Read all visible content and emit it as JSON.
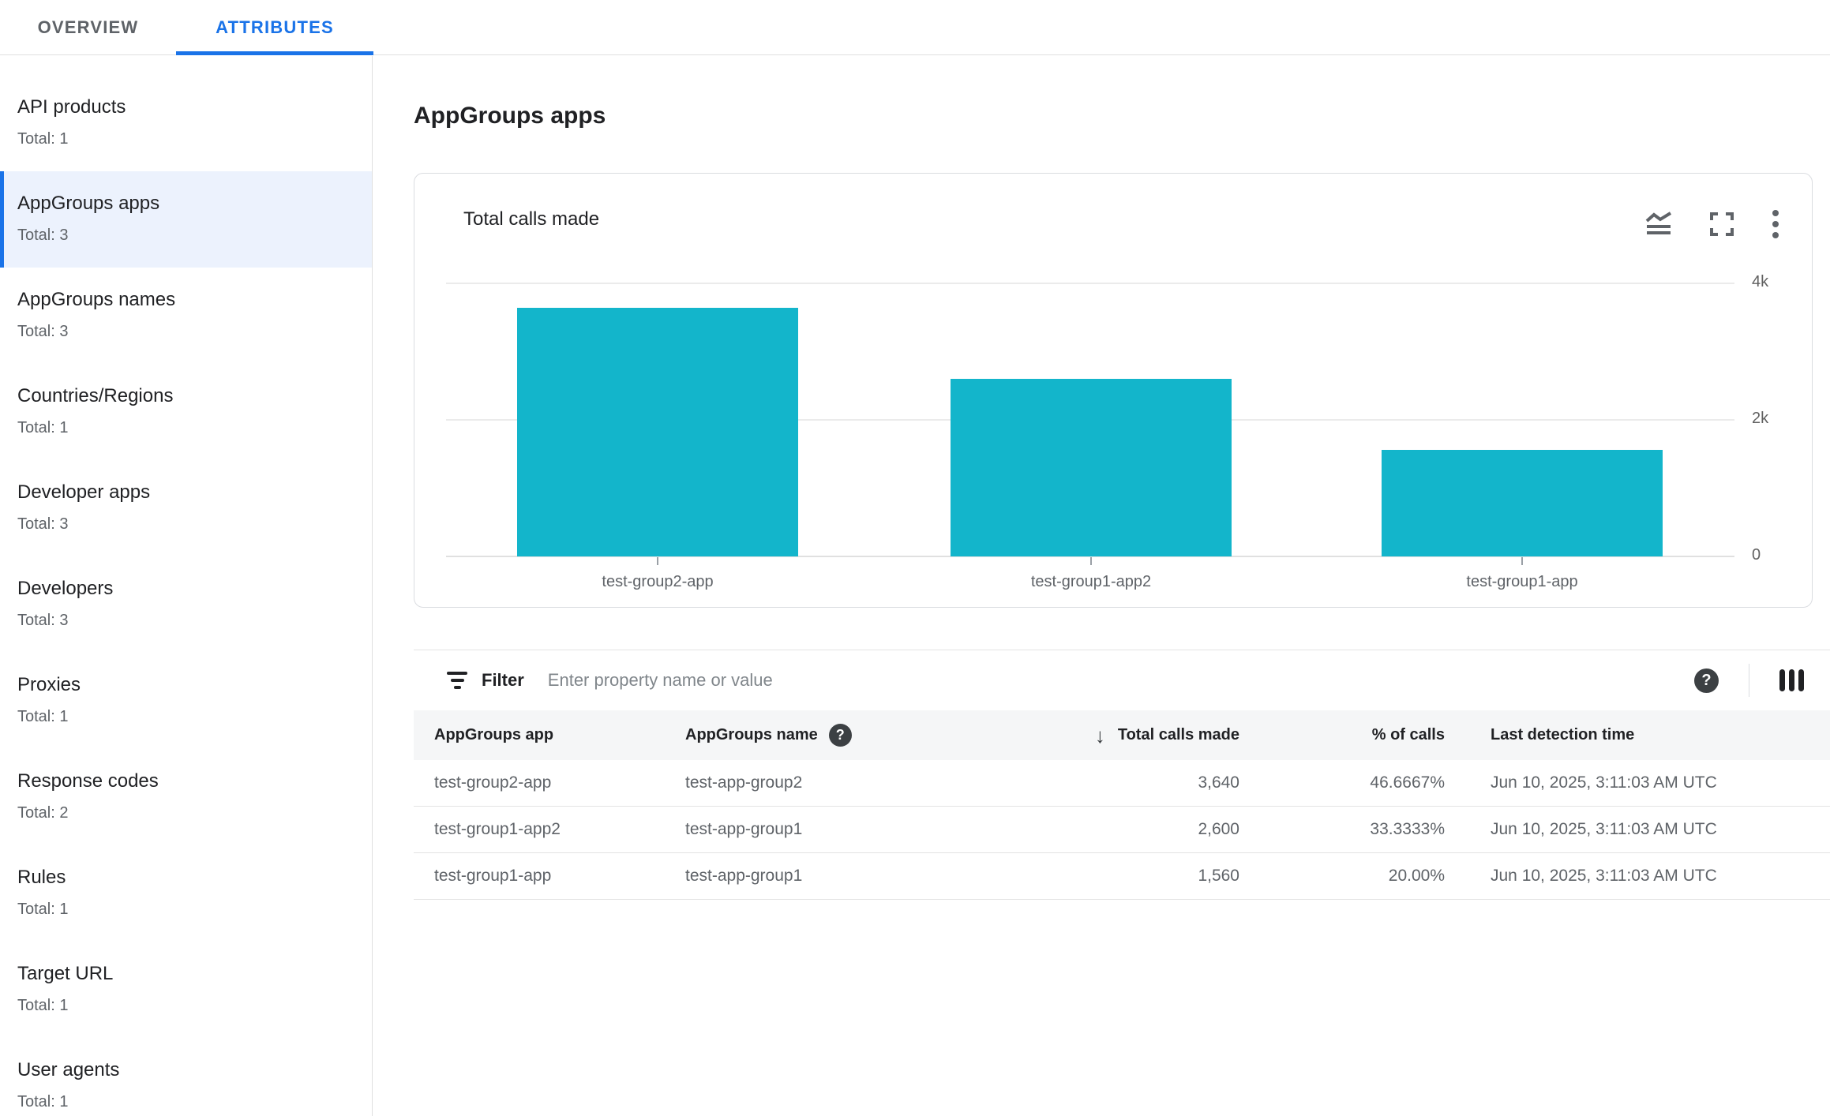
{
  "tabs": {
    "overview": "OVERVIEW",
    "attributes": "ATTRIBUTES"
  },
  "sidebar": {
    "items": [
      {
        "label": "API products",
        "subtitle": "Total: 1",
        "selected": false
      },
      {
        "label": "AppGroups apps",
        "subtitle": "Total: 3",
        "selected": true
      },
      {
        "label": "AppGroups names",
        "subtitle": "Total: 3",
        "selected": false
      },
      {
        "label": "Countries/Regions",
        "subtitle": "Total: 1",
        "selected": false
      },
      {
        "label": "Developer apps",
        "subtitle": "Total: 3",
        "selected": false
      },
      {
        "label": "Developers",
        "subtitle": "Total: 3",
        "selected": false
      },
      {
        "label": "Proxies",
        "subtitle": "Total: 1",
        "selected": false
      },
      {
        "label": "Response codes",
        "subtitle": "Total: 2",
        "selected": false
      },
      {
        "label": "Rules",
        "subtitle": "Total: 1",
        "selected": false
      },
      {
        "label": "Target URL",
        "subtitle": "Total: 1",
        "selected": false
      },
      {
        "label": "User agents",
        "subtitle": "Total: 1",
        "selected": false
      }
    ]
  },
  "main": {
    "title": "AppGroups apps"
  },
  "chart_card": {
    "title": "Total calls made",
    "icons": [
      "area-chart-icon",
      "fullscreen-icon",
      "more-vert-icon"
    ]
  },
  "chart_data": {
    "type": "bar",
    "title": "Total calls made",
    "categories": [
      "test-group2-app",
      "test-group1-app2",
      "test-group1-app"
    ],
    "values": [
      3640,
      2600,
      1560
    ],
    "ylim": [
      0,
      4000
    ],
    "yticks": [
      {
        "label": "4k",
        "value": 4000
      },
      {
        "label": "2k",
        "value": 2000
      },
      {
        "label": "0",
        "value": 0
      }
    ],
    "bar_color": "#13b5cb",
    "grid": "horizontal",
    "y_axis_position": "right",
    "legend": "none"
  },
  "filter": {
    "label": "Filter",
    "placeholder": "Enter property name or value"
  },
  "table": {
    "columns": {
      "app": "AppGroups app",
      "name": "AppGroups name",
      "calls": "Total calls made",
      "pct": "% of calls",
      "time": "Last detection time"
    },
    "sort": {
      "column": "calls",
      "direction": "desc",
      "arrow": "↓"
    },
    "rows": [
      {
        "app": "test-group2-app",
        "name": "test-app-group2",
        "calls": "3,640",
        "pct": "46.6667%",
        "time": "Jun 10, 2025, 3:11:03 AM UTC"
      },
      {
        "app": "test-group1-app2",
        "name": "test-app-group1",
        "calls": "2,600",
        "pct": "33.3333%",
        "time": "Jun 10, 2025, 3:11:03 AM UTC"
      },
      {
        "app": "test-group1-app",
        "name": "test-app-group1",
        "calls": "1,560",
        "pct": "20.00%",
        "time": "Jun 10, 2025, 3:11:03 AM UTC"
      }
    ]
  },
  "icons": {
    "help": "?",
    "filter": "filter-list-icon",
    "columns": "column-display-icon"
  },
  "colors": {
    "accent": "#1a73e8",
    "bar": "#13b5cb",
    "selected_bg": "#ecf2fd",
    "header_bg": "#f5f6f7"
  }
}
